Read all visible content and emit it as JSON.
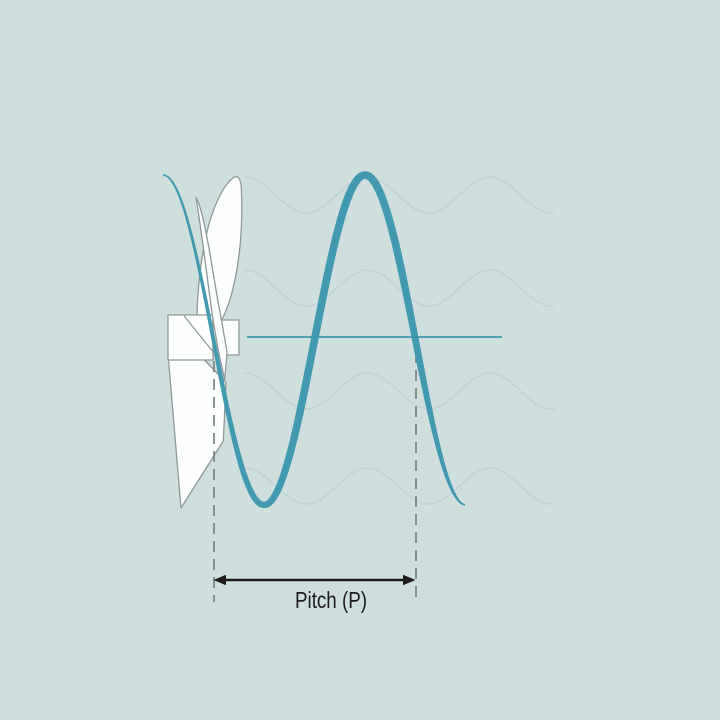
{
  "diagram": {
    "pitch_label": "Pitch (P)"
  },
  "shapes": {
    "propeller": "propeller-side-view-illustration",
    "helix": "helical-pitch-wave",
    "water": "water-ripple-waves",
    "axis": "propeller-shaft-axis-line",
    "pitch_marker": "double-headed-arrow-with-dashed-extents"
  },
  "colors": {
    "background": "#cedfde",
    "helix_wave": "#4399b0",
    "axis_line": "#3b97ad",
    "water_wave": "#c3d4d4",
    "propeller_fill": "#fdfefe",
    "propeller_outline": "#8e9899",
    "dashed_line": "#6f7d7d",
    "arrow": "#1c1c1c",
    "label_text": "#1c1c1c"
  }
}
